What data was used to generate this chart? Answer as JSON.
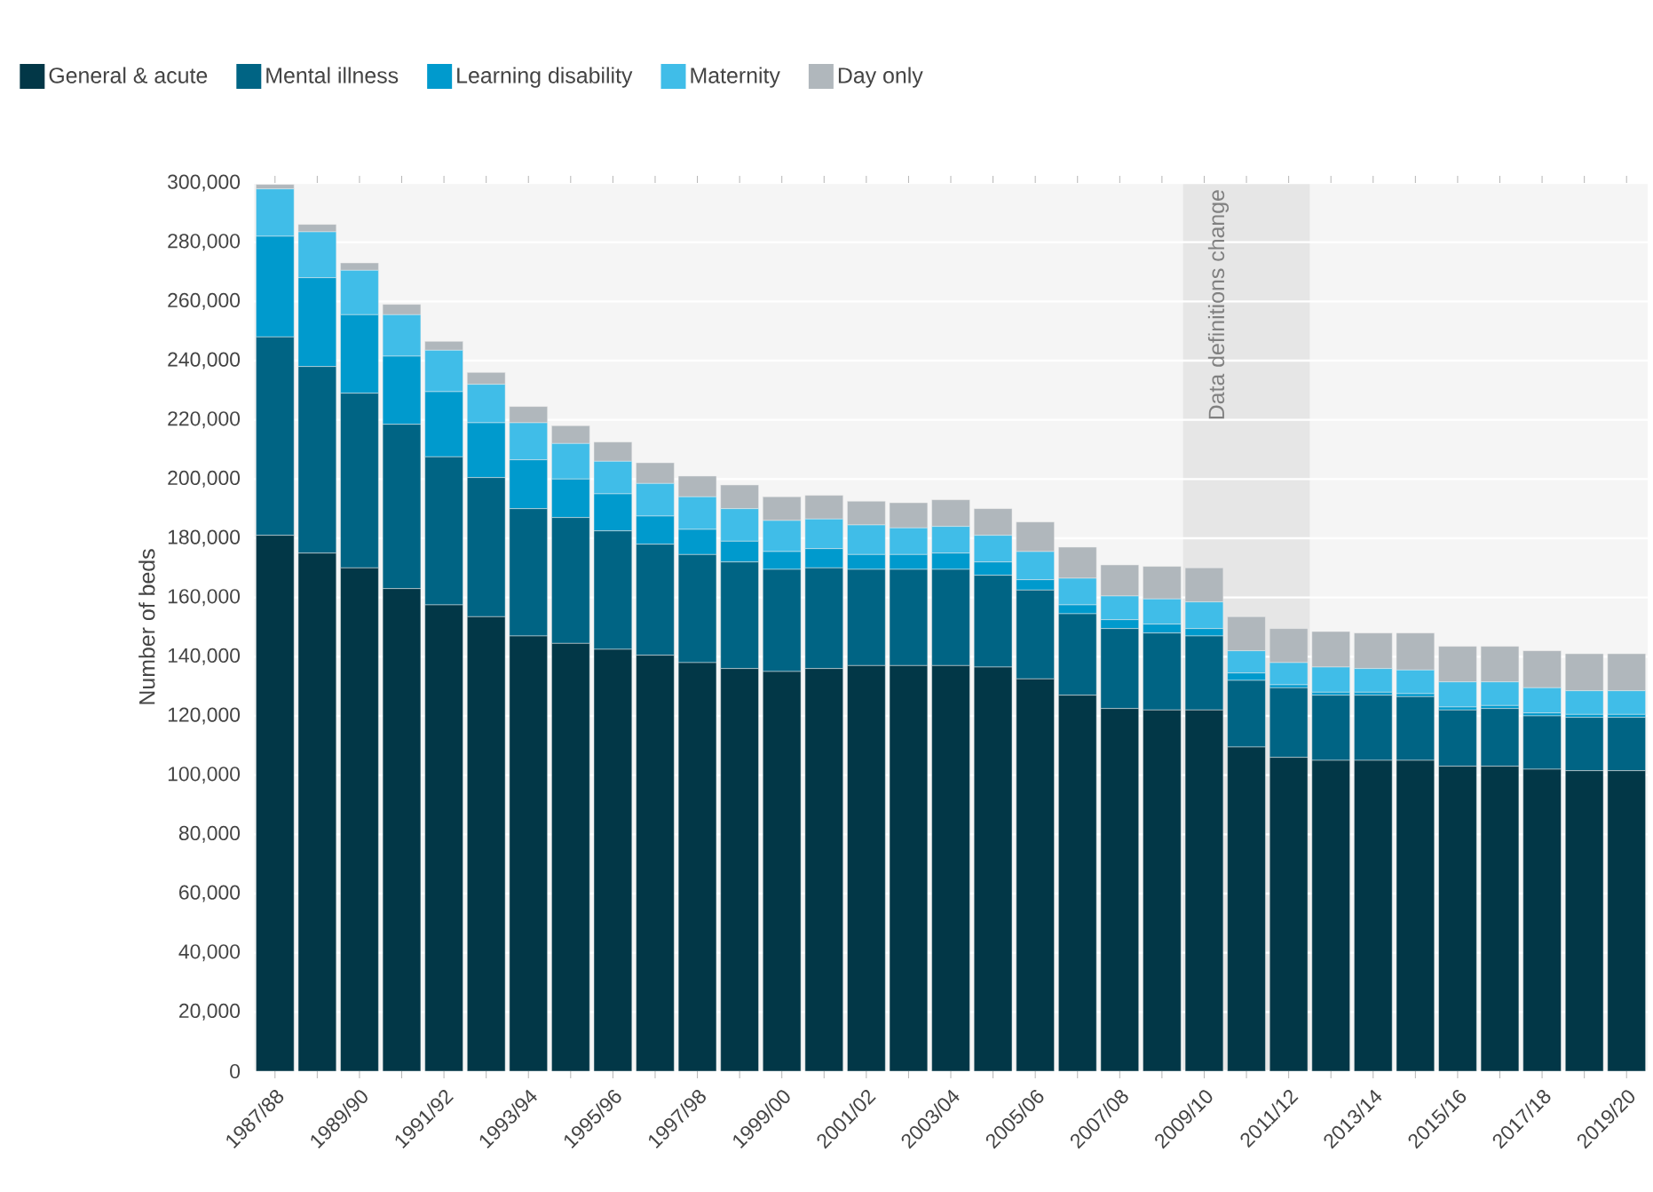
{
  "chart_data": {
    "type": "bar",
    "stacked": true,
    "ylabel": "Number of beds",
    "categories": [
      "1987/88",
      null,
      "1989/90",
      null,
      "1991/92",
      null,
      "1993/94",
      null,
      "1995/96",
      null,
      "1997/98",
      null,
      "1999/00",
      null,
      "2001/02",
      null,
      "2003/04",
      null,
      "2005/06",
      null,
      "2007/08",
      null,
      "2009/10",
      null,
      "2011/12",
      null,
      "2013/14",
      null,
      "2015/16",
      null,
      "2017/18",
      null,
      "2019/20"
    ],
    "series": [
      {
        "name": "General & acute",
        "color": "#023747",
        "values": [
          181000,
          175000,
          170000,
          163000,
          157500,
          153500,
          147000,
          144500,
          142500,
          140500,
          138000,
          136000,
          135000,
          136000,
          137000,
          137000,
          137000,
          136500,
          132500,
          127000,
          122500,
          122000,
          122000,
          109500,
          106000,
          105000,
          105000,
          105000,
          103000,
          103000,
          102000,
          101500,
          101500
        ]
      },
      {
        "name": "Mental illness",
        "color": "#006484",
        "values": [
          67000,
          63000,
          59000,
          55500,
          50000,
          47000,
          43000,
          42500,
          40000,
          37500,
          36500,
          36000,
          34500,
          34000,
          32500,
          32500,
          32500,
          31000,
          30000,
          27500,
          27000,
          26000,
          25000,
          22500,
          23500,
          22000,
          22000,
          21500,
          19000,
          19500,
          18000,
          18000,
          18000
        ]
      },
      {
        "name": "Learning disability",
        "color": "#009acd",
        "values": [
          34000,
          30000,
          26500,
          23000,
          22000,
          18500,
          16500,
          13000,
          12500,
          9500,
          8500,
          7000,
          6000,
          6500,
          5000,
          5000,
          5500,
          4500,
          3500,
          3000,
          3000,
          3000,
          2500,
          2500,
          1000,
          1000,
          1000,
          1000,
          1000,
          1000,
          1000,
          1000,
          1000
        ]
      },
      {
        "name": "Maternity",
        "color": "#40bde8",
        "values": [
          16000,
          15500,
          15000,
          14000,
          14000,
          13000,
          12500,
          12000,
          11000,
          11000,
          11000,
          11000,
          10500,
          10000,
          10000,
          9000,
          9000,
          9000,
          9500,
          9000,
          8000,
          8500,
          9000,
          7500,
          7500,
          8500,
          8000,
          8000,
          8500,
          8000,
          8500,
          8000,
          8000
        ]
      },
      {
        "name": "Day only",
        "color": "#b0b7bc",
        "values": [
          1500,
          2500,
          2500,
          3500,
          3000,
          4000,
          5500,
          6000,
          6500,
          7000,
          7000,
          8000,
          8000,
          8000,
          8000,
          8500,
          9000,
          9000,
          10000,
          10500,
          10500,
          11000,
          11500,
          11500,
          11500,
          12000,
          12000,
          12500,
          12000,
          12000,
          12500,
          12500,
          12500
        ]
      }
    ],
    "ylim": [
      0,
      300000
    ],
    "yticks": [
      0,
      {
        "value": 20000,
        "label": "20,000"
      },
      {
        "value": 40000,
        "label": "40,000"
      },
      {
        "value": 60000,
        "label": "60,000"
      },
      {
        "value": 80000,
        "label": "80,000"
      },
      {
        "value": 100000,
        "label": "100,000"
      },
      {
        "value": 120000,
        "label": "120,000"
      },
      {
        "value": 140000,
        "label": "140,000"
      },
      {
        "value": 160000,
        "label": "160,000"
      },
      {
        "value": 180000,
        "label": "180,000"
      },
      {
        "value": 200000,
        "label": "200,000"
      },
      {
        "value": 220000,
        "label": "220,000"
      },
      {
        "value": 240000,
        "label": "240,000"
      },
      {
        "value": 260000,
        "label": "260,000"
      },
      {
        "value": 280000,
        "label": "280,000"
      },
      {
        "value": 300000,
        "label": "300,000"
      }
    ],
    "bands": [
      {
        "axis": "x",
        "from": "2009/10",
        "to": "2011/12",
        "label": "Data definitions change",
        "color": "#e6e6e6"
      }
    ],
    "grid": "y",
    "legend": "top left"
  }
}
